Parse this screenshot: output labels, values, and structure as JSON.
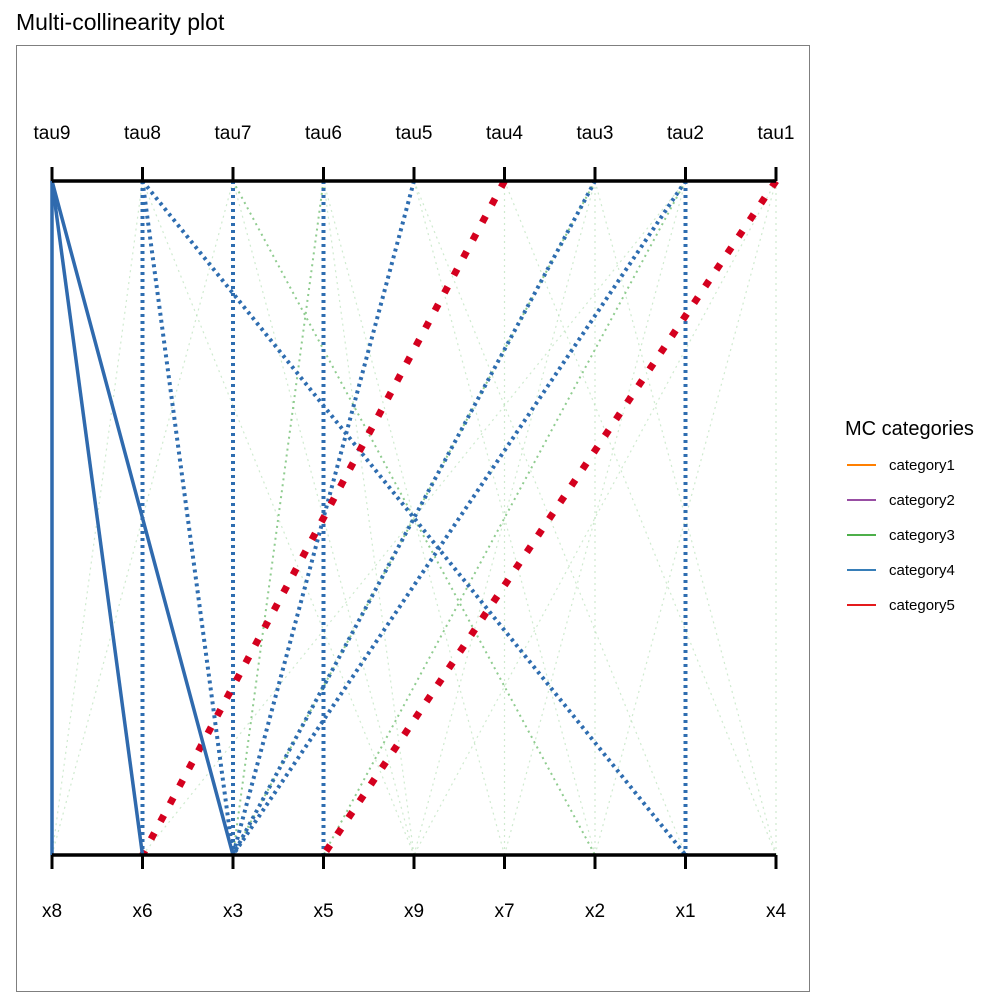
{
  "chart_data": {
    "type": "multicollinearity",
    "title": "Multi-collinearity plot",
    "top_axis_labels": [
      "tau9",
      "tau8",
      "tau7",
      "tau6",
      "tau5",
      "tau4",
      "tau3",
      "tau2",
      "tau1"
    ],
    "bottom_axis_labels": [
      "x8",
      "x6",
      "x3",
      "x5",
      "x9",
      "x7",
      "x2",
      "x1",
      "x4"
    ],
    "legend": {
      "title": "MC categories",
      "position": "right",
      "entries": [
        {
          "name": "category1",
          "color": "#FF7F00"
        },
        {
          "name": "category2",
          "color": "#984EA3"
        },
        {
          "name": "category3",
          "color": "#4DAF4A"
        },
        {
          "name": "category4",
          "color": "#377EB8"
        },
        {
          "name": "category5",
          "color": "#E41A1C"
        }
      ]
    },
    "category_colors": {
      "faint": "#A8D8A8",
      "category3": "#8FCC8F",
      "category4": "#2E6DB0",
      "category4_strong": "#2F6AAE",
      "category5": "#D4001E"
    },
    "links": [
      {
        "tau": "tau9",
        "x": "x8",
        "category": 4,
        "style": "solid"
      },
      {
        "tau": "tau9",
        "x": "x6",
        "category": 4,
        "style": "solid"
      },
      {
        "tau": "tau9",
        "x": "x3",
        "category": 4,
        "style": "solid"
      },
      {
        "tau": "tau8",
        "x": "x6",
        "category": 4,
        "style": "dotted"
      },
      {
        "tau": "tau8",
        "x": "x3",
        "category": 4,
        "style": "dotted"
      },
      {
        "tau": "tau8",
        "x": "x1",
        "category": 4,
        "style": "dotted"
      },
      {
        "tau": "tau7",
        "x": "x3",
        "category": 4,
        "style": "dotted"
      },
      {
        "tau": "tau6",
        "x": "x5",
        "category": 4,
        "style": "dotted"
      },
      {
        "tau": "tau5",
        "x": "x3",
        "category": 4,
        "style": "dotted"
      },
      {
        "tau": "tau3",
        "x": "x3",
        "category": 4,
        "style": "dotted"
      },
      {
        "tau": "tau2",
        "x": "x3",
        "category": 4,
        "style": "dotted"
      },
      {
        "tau": "tau2",
        "x": "x1",
        "category": 4,
        "style": "dotted"
      },
      {
        "tau": "tau4",
        "x": "x6",
        "category": 5,
        "style": "dotted"
      },
      {
        "tau": "tau1",
        "x": "x5",
        "category": 5,
        "style": "dotted"
      },
      {
        "tau": "tau7",
        "x": "x2",
        "category": 3,
        "style": "dotted"
      },
      {
        "tau": "tau6",
        "x": "x3",
        "category": 3,
        "style": "dotted"
      },
      {
        "tau": "tau3",
        "x": "x3",
        "category": 3,
        "style": "dotted"
      },
      {
        "tau": "tau2",
        "x": "x5",
        "category": 3,
        "style": "dotted"
      },
      {
        "tau": "tau9",
        "x": "x6",
        "category": 0,
        "style": "faint"
      },
      {
        "tau": "tau9",
        "x": "x3",
        "category": 0,
        "style": "faint"
      },
      {
        "tau": "tau8",
        "x": "x8",
        "category": 0,
        "style": "faint"
      },
      {
        "tau": "tau7",
        "x": "x9",
        "category": 0,
        "style": "faint"
      },
      {
        "tau": "tau7",
        "x": "x8",
        "category": 0,
        "style": "faint"
      },
      {
        "tau": "tau6",
        "x": "x9",
        "category": 0,
        "style": "faint"
      },
      {
        "tau": "tau6",
        "x": "x7",
        "category": 0,
        "style": "faint"
      },
      {
        "tau": "tau5",
        "x": "x2",
        "category": 0,
        "style": "faint"
      },
      {
        "tau": "tau5",
        "x": "x1",
        "category": 0,
        "style": "faint"
      },
      {
        "tau": "tau4",
        "x": "x7",
        "category": 0,
        "style": "faint"
      },
      {
        "tau": "tau4",
        "x": "x4",
        "category": 0,
        "style": "faint"
      },
      {
        "tau": "tau3",
        "x": "x2",
        "category": 0,
        "style": "faint"
      },
      {
        "tau": "tau3",
        "x": "x4",
        "category": 0,
        "style": "faint"
      },
      {
        "tau": "tau3",
        "x": "x9",
        "category": 0,
        "style": "faint"
      },
      {
        "tau": "tau2",
        "x": "x6",
        "category": 0,
        "style": "faint"
      },
      {
        "tau": "tau2",
        "x": "x7",
        "category": 0,
        "style": "faint"
      },
      {
        "tau": "tau1",
        "x": "x2",
        "category": 0,
        "style": "faint"
      },
      {
        "tau": "tau1",
        "x": "x4",
        "category": 0,
        "style": "faint"
      },
      {
        "tau": "tau1",
        "x": "x9",
        "category": 0,
        "style": "faint"
      },
      {
        "tau": "tau8",
        "x": "x9",
        "category": 0,
        "style": "faint"
      }
    ]
  }
}
